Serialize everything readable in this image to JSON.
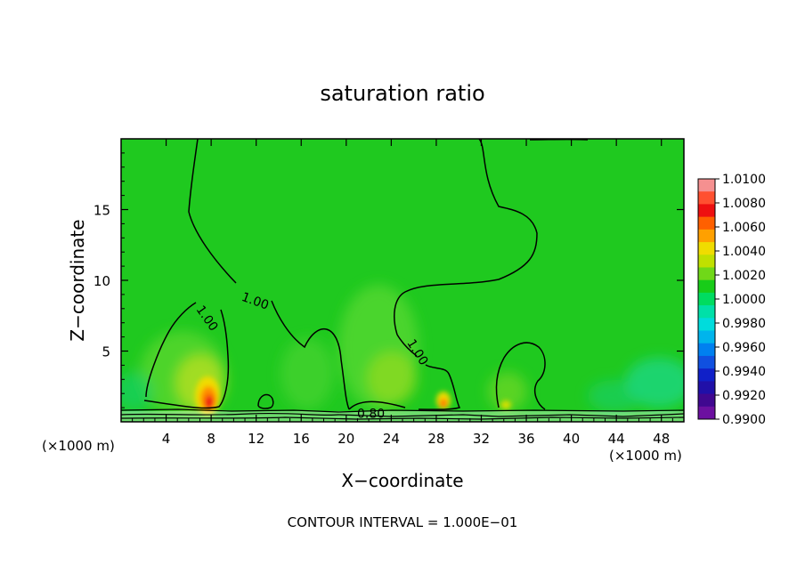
{
  "chart_data": {
    "type": "heatmap",
    "title": "saturation ratio",
    "xlabel": "X−coordinate",
    "ylabel": "Z−coordinate",
    "x_unit_left": "(×1000 m)",
    "x_unit_right": "(×1000 m)",
    "footer": "CONTOUR INTERVAL = 1.000E−01",
    "xlim": [
      0,
      50
    ],
    "ylim": [
      0,
      20
    ],
    "x_ticks": [
      4,
      8,
      12,
      16,
      20,
      24,
      28,
      32,
      36,
      40,
      44,
      48
    ],
    "x_tick_labels": [
      "4",
      "8",
      "12",
      "16",
      "20",
      "24",
      "28",
      "32",
      "36",
      "40",
      "44",
      "48"
    ],
    "y_ticks": [
      5,
      10,
      15
    ],
    "y_tick_labels": [
      "5",
      "10",
      "15"
    ],
    "contour_labels": [
      {
        "text": "1.00",
        "x": 11.9,
        "z": 8.5,
        "angle": 20
      },
      {
        "text": "1.00",
        "x": 7.6,
        "z": 7.3,
        "angle": 55
      },
      {
        "text": "1.00",
        "x": 26.3,
        "z": 4.9,
        "angle": 58
      },
      {
        "text": "0.80",
        "x": 22.2,
        "z": 0.55,
        "angle": 0
      }
    ],
    "colorbar": {
      "levels": [
        1.01,
        1.008,
        1.006,
        1.004,
        1.002,
        1.0,
        0.998,
        0.996,
        0.994,
        0.992,
        0.99
      ],
      "labels": [
        "1.0100",
        "1.0080",
        "1.0060",
        "1.0040",
        "1.0020",
        "1.0000",
        "0.9980",
        "0.9960",
        "0.9940",
        "0.9920",
        "0.9900"
      ],
      "colors": [
        "#f59090",
        "#ff5030",
        "#ee1010",
        "#ff6000",
        "#ffa000",
        "#f0dc00",
        "#c0e000",
        "#70d818",
        "#18cc18",
        "#00dc60",
        "#00e0a8",
        "#00dcdc",
        "#00b4ec",
        "#0080f0",
        "#1050e0",
        "#1020c8",
        "#2010a8",
        "#400890",
        "#6c10a0"
      ]
    },
    "background_color": "#1fc91f"
  }
}
